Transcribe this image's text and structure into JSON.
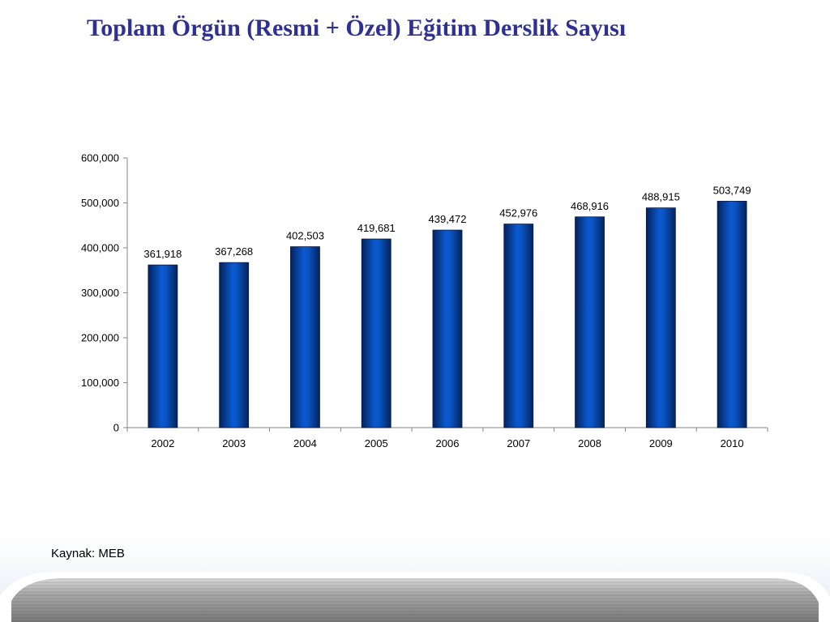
{
  "title": "Toplam Örgün (Resmi + Özel) Eğitim Derslik Sayısı",
  "source": "Kaynak: MEB",
  "colors": {
    "title": "#2e3192",
    "bar": "#0a4fb8",
    "bar_dark": "#05225c"
  },
  "chart_data": {
    "type": "bar",
    "title": "",
    "xlabel": "",
    "ylabel": "",
    "categories": [
      "2002",
      "2003",
      "2004",
      "2005",
      "2006",
      "2007",
      "2008",
      "2009",
      "2010"
    ],
    "values": [
      361918,
      367268,
      402503,
      419681,
      439472,
      452976,
      468916,
      488915,
      503749
    ],
    "value_labels": [
      "361,918",
      "367,268",
      "402,503",
      "419,681",
      "439,472",
      "452,976",
      "468,916",
      "488,915",
      "503,749"
    ],
    "ylim": [
      0,
      600000
    ],
    "yticks": [
      0,
      100000,
      200000,
      300000,
      400000,
      500000,
      600000
    ],
    "ytick_labels": [
      "0",
      "100,000",
      "200,000",
      "300,000",
      "400,000",
      "500,000",
      "600,000"
    ],
    "grid": false,
    "legend": "none"
  }
}
